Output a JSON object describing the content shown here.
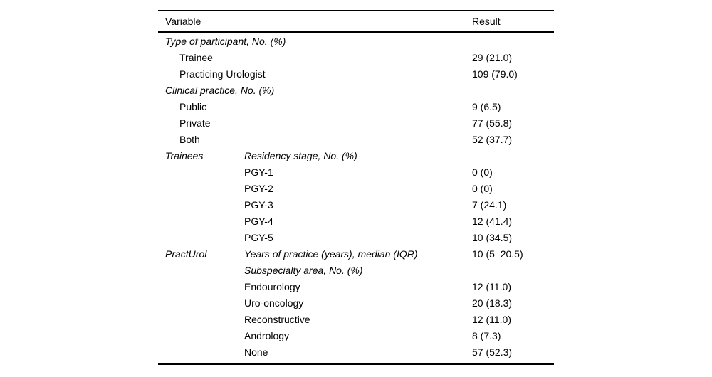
{
  "colors": {
    "background": "#ffffff",
    "text": "#000000",
    "rule": "#000000"
  },
  "table": {
    "header": {
      "variable": "Variable",
      "result": "Result"
    },
    "rows": [
      {
        "variable": "Type of participant, No. (%)",
        "variable_italic": true,
        "indent": false,
        "mid": "",
        "mid_italic": false,
        "result": ""
      },
      {
        "variable": "Trainee",
        "variable_italic": false,
        "indent": true,
        "mid": "",
        "mid_italic": false,
        "result": "29 (21.0)"
      },
      {
        "variable": "Practicing Urologist",
        "variable_italic": false,
        "indent": true,
        "mid": "",
        "mid_italic": false,
        "result": "109 (79.0)"
      },
      {
        "variable": "Clinical practice, No. (%)",
        "variable_italic": true,
        "indent": false,
        "mid": "",
        "mid_italic": false,
        "result": ""
      },
      {
        "variable": "Public",
        "variable_italic": false,
        "indent": true,
        "mid": "",
        "mid_italic": false,
        "result": "9 (6.5)"
      },
      {
        "variable": "Private",
        "variable_italic": false,
        "indent": true,
        "mid": "",
        "mid_italic": false,
        "result": "77 (55.8)"
      },
      {
        "variable": "Both",
        "variable_italic": false,
        "indent": true,
        "mid": "",
        "mid_italic": false,
        "result": "52 (37.7)"
      },
      {
        "variable": "Trainees",
        "variable_italic": true,
        "indent": false,
        "mid": "Residency stage, No. (%)",
        "mid_italic": true,
        "result": ""
      },
      {
        "variable": "",
        "variable_italic": false,
        "indent": false,
        "mid": "PGY-1",
        "mid_italic": false,
        "result": "0 (0)"
      },
      {
        "variable": "",
        "variable_italic": false,
        "indent": false,
        "mid": "PGY-2",
        "mid_italic": false,
        "result": "0 (0)"
      },
      {
        "variable": "",
        "variable_italic": false,
        "indent": false,
        "mid": "PGY-3",
        "mid_italic": false,
        "result": "7 (24.1)"
      },
      {
        "variable": "",
        "variable_italic": false,
        "indent": false,
        "mid": "PGY-4",
        "mid_italic": false,
        "result": "12 (41.4)"
      },
      {
        "variable": "",
        "variable_italic": false,
        "indent": false,
        "mid": "PGY-5",
        "mid_italic": false,
        "result": "10 (34.5)"
      },
      {
        "variable": "PractUrol",
        "variable_italic": true,
        "indent": false,
        "mid": "Years of practice (years), median (IQR)",
        "mid_italic": true,
        "result": "10 (5–20.5)"
      },
      {
        "variable": "",
        "variable_italic": false,
        "indent": false,
        "mid": "Subspecialty area, No. (%)",
        "mid_italic": true,
        "result": ""
      },
      {
        "variable": "",
        "variable_italic": false,
        "indent": false,
        "mid": "Endourology",
        "mid_italic": false,
        "result": "12 (11.0)"
      },
      {
        "variable": "",
        "variable_italic": false,
        "indent": false,
        "mid": "Uro-oncology",
        "mid_italic": false,
        "result": "20 (18.3)"
      },
      {
        "variable": "",
        "variable_italic": false,
        "indent": false,
        "mid": "Reconstructive",
        "mid_italic": false,
        "result": "12 (11.0)"
      },
      {
        "variable": "",
        "variable_italic": false,
        "indent": false,
        "mid": "Andrology",
        "mid_italic": false,
        "result": "8 (7.3)"
      },
      {
        "variable": "",
        "variable_italic": false,
        "indent": false,
        "mid": "None",
        "mid_italic": false,
        "result": "57 (52.3)"
      }
    ]
  }
}
